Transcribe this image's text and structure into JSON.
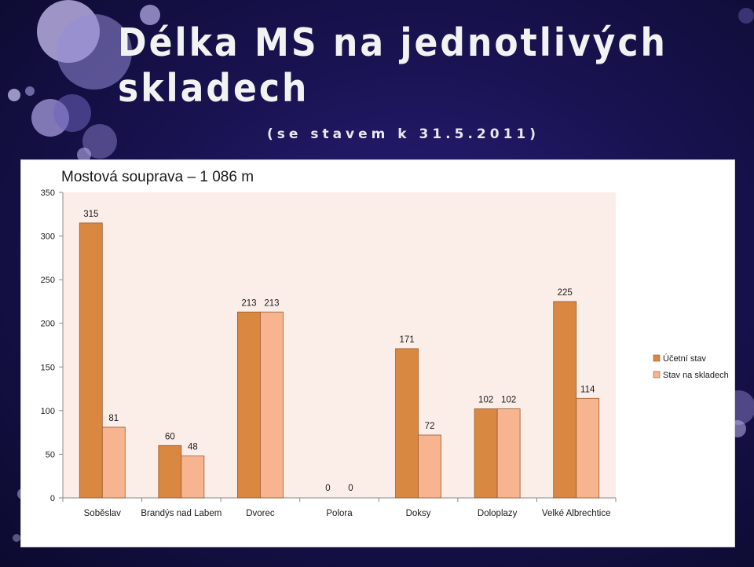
{
  "slide": {
    "title": "Délka MS na jednotlivých skladech",
    "subtitle": "(se stavem k 31.5.2011)"
  },
  "chart_data": {
    "type": "bar",
    "title": "Mostová souprava – 1 086 m",
    "categories": [
      "Soběslav",
      "Brandýs nad Labem",
      "Dvorec",
      "Polora",
      "Doksy",
      "Doloplazy",
      "Velké Albrechtice"
    ],
    "series": [
      {
        "name": "Účetní stav",
        "values": [
          315,
          60,
          213,
          0,
          171,
          102,
          225
        ],
        "color": "#d98842"
      },
      {
        "name": "Stav na skladech",
        "values": [
          81,
          48,
          213,
          0,
          72,
          102,
          114
        ],
        "color": "#f6b490"
      }
    ],
    "ylim": [
      0,
      350
    ],
    "yticks": [
      0,
      50,
      100,
      150,
      200,
      250,
      300,
      350
    ],
    "legend_position": "right",
    "plot_background": "#fbeee9",
    "grid": false
  }
}
